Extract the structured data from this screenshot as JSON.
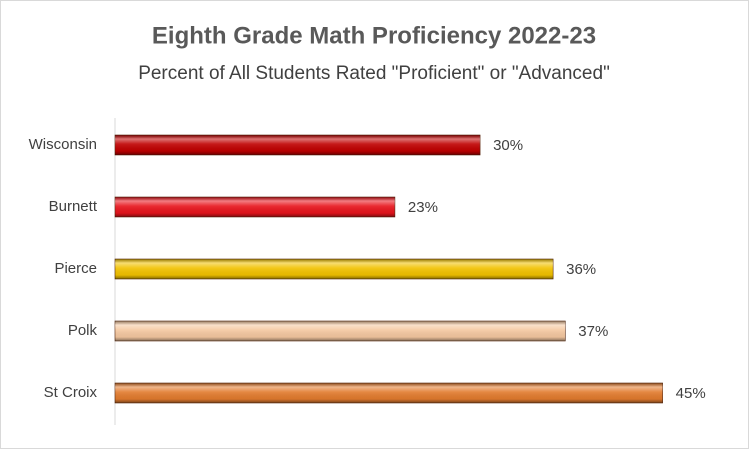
{
  "chart_data": {
    "type": "bar",
    "orientation": "horizontal",
    "title": "Eighth Grade Math Proficiency 2022-23",
    "subtitle": "Percent of All Students Rated \"Proficient\" or \"Advanced\"",
    "categories": [
      "Wisconsin",
      "Burnett",
      "Pierce",
      "Polk",
      "St Croix"
    ],
    "values": [
      30,
      23,
      36,
      37,
      45
    ],
    "value_labels": [
      "30%",
      "23%",
      "36%",
      "37%",
      "45%"
    ],
    "colors": [
      "#c00000",
      "#e8141c",
      "#f2c200",
      "#f5c8a0",
      "#e27b2e"
    ]
  }
}
